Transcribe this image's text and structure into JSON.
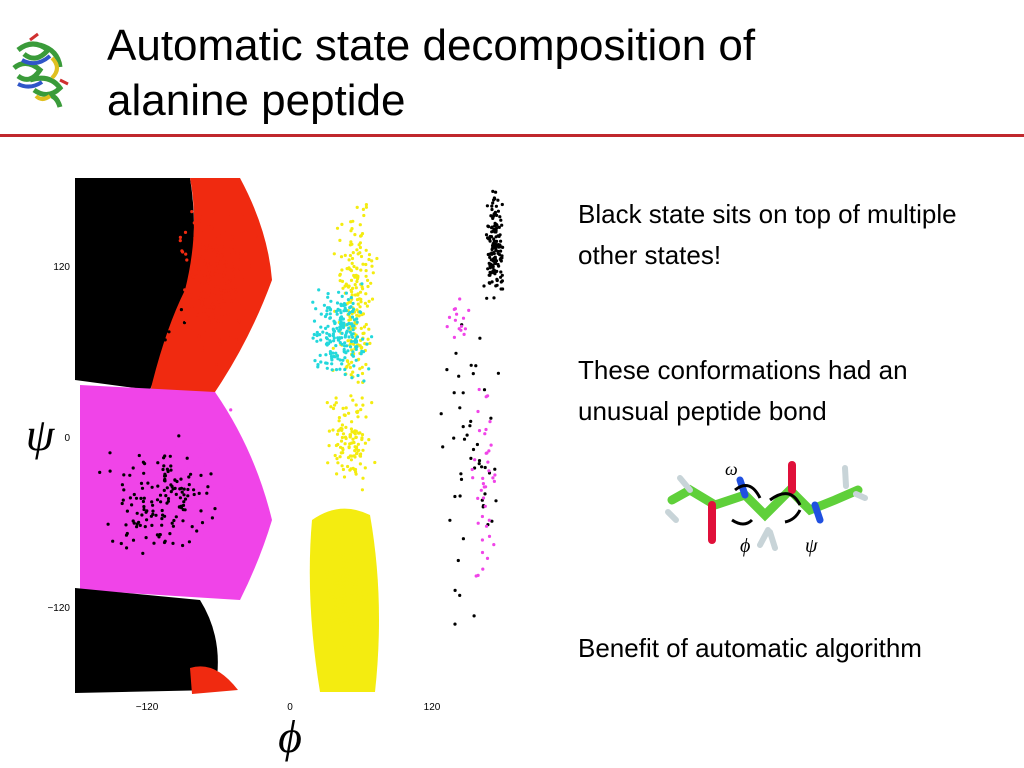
{
  "header": {
    "title": "Automatic state decomposition of alanine peptide"
  },
  "plot": {
    "x_label": "ϕ",
    "y_label": "ψ",
    "x_ticks": [
      "−120",
      "0",
      "120"
    ],
    "y_ticks": [
      "120",
      "0",
      "−120"
    ]
  },
  "notes": [
    "Black state sits on top of multiple other states!",
    "These conformations had an unusual peptide bond",
    "Benefit of automatic algorithm"
  ],
  "molecule": {
    "labels": [
      "ω",
      "ϕ",
      "ψ"
    ]
  }
}
